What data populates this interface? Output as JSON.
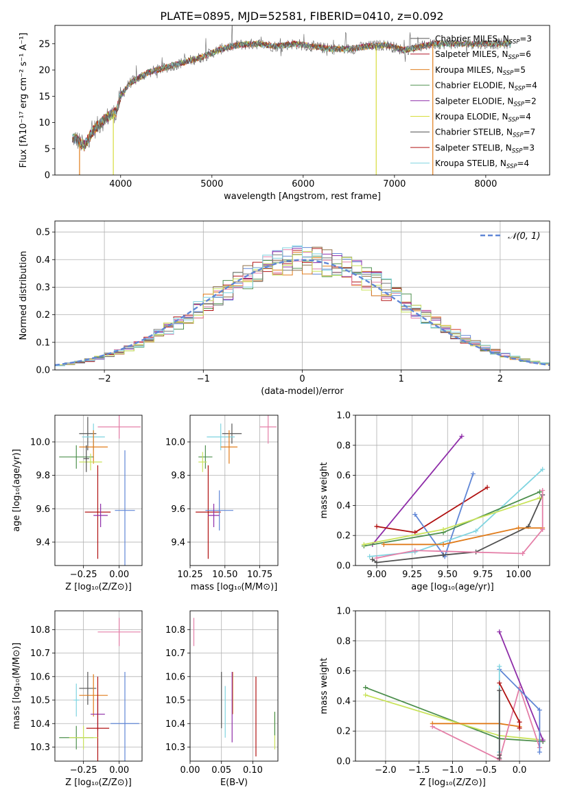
{
  "figure_title": "PLATE=0895, MJD=52581, FIBERID=0410, z=0.092",
  "colors": [
    "#555555",
    "#b2182b",
    "#e07b1a",
    "#4d8f4d",
    "#8e2ca8",
    "#d7dc3a",
    "#4f4f4f",
    "#b01010",
    "#7fd4e0",
    "#5f86d6",
    "#e47ea7",
    "#c9e35b"
  ],
  "chart_data": [
    {
      "id": "spectrum",
      "type": "line",
      "title": "PLATE=0895, MJD=52581, FIBERID=0410, z=0.092",
      "xlabel": "wavelength [Angstrom, rest frame]",
      "ylabel": "Flux [fλ10⁻¹⁷ erg cm⁻² s⁻¹ A⁻¹]",
      "xlim": [
        3280,
        8700
      ],
      "ylim": [
        0,
        28.5
      ],
      "xticks": [
        4000,
        5000,
        6000,
        7000,
        8000
      ],
      "yticks": [
        0,
        5,
        10,
        15,
        20,
        25
      ],
      "grid": false,
      "legend_position": "right",
      "continuum": {
        "x": [
          3500,
          3600,
          3700,
          3850,
          3950,
          4000,
          4100,
          4300,
          4500,
          4700,
          4900,
          5100,
          5300,
          5500,
          5700,
          5900,
          6100,
          6300,
          6500,
          6700,
          6900,
          7100,
          7300,
          7420
        ],
        "y": [
          7,
          5.5,
          8.5,
          11,
          12,
          15,
          17.5,
          19.5,
          20.5,
          21.5,
          22.5,
          24,
          24.8,
          25,
          24.5,
          25,
          24.5,
          24,
          24,
          24.5,
          24.8,
          23.8,
          24.5,
          25
        ]
      },
      "series": [
        {
          "name": "Chabrier MILES, N_SSP=3",
          "color": "#555555"
        },
        {
          "name": "Salpeter MILES, N_SSP=6",
          "color": "#b2182b"
        },
        {
          "name": "Kroupa MILES, N_SSP=5",
          "color": "#e07b1a"
        },
        {
          "name": "Chabrier ELODIE, N_SSP=4",
          "color": "#4d8f4d"
        },
        {
          "name": "Salpeter ELODIE, N_SSP=2",
          "color": "#8e2ca8"
        },
        {
          "name": "Kroupa ELODIE, N_SSP=4",
          "color": "#d7dc3a"
        },
        {
          "name": "Chabrier STELIB, N_SSP=7",
          "color": "#4f4f4f"
        },
        {
          "name": "Salpeter STELIB, N_SSP=3",
          "color": "#b01010"
        },
        {
          "name": "Kroupa STELIB, N_SSP=4",
          "color": "#7fd4e0"
        }
      ],
      "legend_labels": [
        {
          "main": "Chabrier MILES, N",
          "sub": "SSP",
          "tail": "=3"
        },
        {
          "main": "Salpeter MILES, N",
          "sub": "SSP",
          "tail": "=6"
        },
        {
          "main": "Kroupa MILES, N",
          "sub": "SSP",
          "tail": "=5"
        },
        {
          "main": "Chabrier ELODIE, N",
          "sub": "SSP",
          "tail": "=4"
        },
        {
          "main": "Salpeter ELODIE, N",
          "sub": "SSP",
          "tail": "=2"
        },
        {
          "main": "Kroupa ELODIE, N",
          "sub": "SSP",
          "tail": "=4"
        },
        {
          "main": "Chabrier STELIB, N",
          "sub": "SSP",
          "tail": "=7"
        },
        {
          "main": "Salpeter STELIB, N",
          "sub": "SSP",
          "tail": "=3"
        },
        {
          "main": "Kroupa STELIB, N",
          "sub": "SSP",
          "tail": "=4"
        }
      ],
      "drop_lines": [
        {
          "x": 3550,
          "color": "#e07b1a"
        },
        {
          "x": 3920,
          "color": "#d7dc3a"
        },
        {
          "x": 6800,
          "color": "#d7dc3a"
        },
        {
          "x": 7420,
          "color": "#e07b1a"
        }
      ]
    },
    {
      "id": "residuals",
      "type": "line",
      "xlabel": "(data-model)/error",
      "ylabel": "Normed distribution",
      "xlim": [
        -2.5,
        2.5
      ],
      "ylim": [
        0,
        0.54
      ],
      "xticks": [
        -2,
        -1,
        0,
        1,
        2
      ],
      "yticks": [
        0.0,
        0.1,
        0.2,
        0.3,
        0.4,
        0.5
      ],
      "grid": true,
      "legend_position": "top-right",
      "reference_label": "𝒩(0, 1)",
      "reference_color": "#5f86d6",
      "bin_width": 0.1,
      "histogram_colors": [
        "#5f86d6",
        "#e07b1a",
        "#4d8f4d",
        "#b01010",
        "#8e2ca8",
        "#8c6d46",
        "#e47ea7",
        "#777777",
        "#c9e35b",
        "#7fd4e0"
      ]
    },
    {
      "id": "age_vs_Z",
      "type": "scatter",
      "xlabel": "Z [log₁₀(Z/Z⊙)]",
      "ylabel": "age  [log₁₀(age/yr)]",
      "xlim": [
        -0.45,
        0.16
      ],
      "ylim": [
        9.26,
        10.16
      ],
      "xticks": [
        -0.25,
        0.0
      ],
      "yticks": [
        9.4,
        9.6,
        9.8,
        10.0
      ],
      "grid": true,
      "points": [
        {
          "x": -0.22,
          "y": 10.05,
          "xerr": 0.06,
          "yerr": 0.1,
          "color": "#555555"
        },
        {
          "x": 0.0,
          "y": 10.09,
          "xerr": 0.15,
          "yerr": 0.07,
          "color": "#e47ea7"
        },
        {
          "x": -0.18,
          "y": 10.03,
          "xerr": 0.08,
          "yerr": 0.08,
          "color": "#7fd4e0"
        },
        {
          "x": -0.18,
          "y": 9.97,
          "xerr": 0.1,
          "yerr": 0.1,
          "color": "#e07b1a"
        },
        {
          "x": -0.3,
          "y": 9.91,
          "xerr": 0.12,
          "yerr": 0.07,
          "color": "#4d8f4d"
        },
        {
          "x": -0.2,
          "y": 9.88,
          "xerr": 0.08,
          "yerr": 0.05,
          "color": "#c9e35b"
        },
        {
          "x": -0.15,
          "y": 9.58,
          "xerr": 0.09,
          "yerr": 0.28,
          "color": "#b01010"
        },
        {
          "x": 0.04,
          "y": 9.59,
          "xerr": 0.07,
          "yerr": 0.36,
          "color": "#5f86d6"
        },
        {
          "x": -0.13,
          "y": 9.56,
          "xerr": 0.05,
          "yerr": 0.07,
          "color": "#8e2ca8"
        },
        {
          "x": -0.23,
          "y": 9.9,
          "xerr": 0.02,
          "yerr": 0.08,
          "color": "#4f4f4f"
        }
      ]
    },
    {
      "id": "age_vs_mass",
      "type": "scatter",
      "xlabel": "mass [log₁₀(M/M⊙)]",
      "ylabel": "",
      "xlim": [
        10.25,
        10.88
      ],
      "ylim": [
        9.26,
        10.16
      ],
      "xticks": [
        10.25,
        10.5,
        10.75
      ],
      "yticks": [
        9.4,
        9.6,
        9.8,
        10.0
      ],
      "grid": true,
      "points": [
        {
          "x": 10.81,
          "y": 10.09,
          "xerr": 0.06,
          "yerr": 0.1,
          "color": "#e47ea7"
        },
        {
          "x": 10.55,
          "y": 10.05,
          "xerr": 0.07,
          "yerr": 0.06,
          "color": "#555555"
        },
        {
          "x": 10.47,
          "y": 10.03,
          "xerr": 0.1,
          "yerr": 0.08,
          "color": "#7fd4e0"
        },
        {
          "x": 10.53,
          "y": 9.97,
          "xerr": 0.06,
          "yerr": 0.1,
          "color": "#e07b1a"
        },
        {
          "x": 10.36,
          "y": 9.91,
          "xerr": 0.05,
          "yerr": 0.07,
          "color": "#4d8f4d"
        },
        {
          "x": 10.34,
          "y": 9.88,
          "xerr": 0.03,
          "yerr": 0.06,
          "color": "#c9e35b"
        },
        {
          "x": 10.38,
          "y": 9.58,
          "xerr": 0.09,
          "yerr": 0.28,
          "color": "#b01010"
        },
        {
          "x": 10.46,
          "y": 9.59,
          "xerr": 0.1,
          "yerr": 0.12,
          "color": "#5f86d6"
        },
        {
          "x": 10.42,
          "y": 9.56,
          "xerr": 0.04,
          "yerr": 0.07,
          "color": "#8e2ca8"
        }
      ]
    },
    {
      "id": "massweight_vs_age",
      "type": "line",
      "xlabel": "age  [log₁₀(age/yr)]",
      "ylabel": "mass weight",
      "xlim": [
        8.85,
        10.22
      ],
      "ylim": [
        0,
        1
      ],
      "xticks": [
        9.0,
        9.25,
        9.5,
        9.75,
        10.0
      ],
      "yticks": [
        0.0,
        0.2,
        0.4,
        0.6,
        0.8,
        1.0
      ],
      "grid": true,
      "series": [
        {
          "color": "#8e2ca8",
          "x": [
            8.97,
            9.6
          ],
          "y": [
            0.14,
            0.86
          ]
        },
        {
          "color": "#b01010",
          "x": [
            9.0,
            9.27,
            9.78
          ],
          "y": [
            0.26,
            0.22,
            0.52
          ]
        },
        {
          "color": "#5f86d6",
          "x": [
            9.27,
            9.48,
            9.68
          ],
          "y": [
            0.34,
            0.06,
            0.61
          ]
        },
        {
          "color": "#7fd4e0",
          "x": [
            8.95,
            9.27,
            9.7,
            10.17
          ],
          "y": [
            0.06,
            0.09,
            0.23,
            0.64
          ]
        },
        {
          "color": "#4f4f4f",
          "x": [
            8.97,
            9.0,
            9.47,
            9.7,
            10.07,
            10.17
          ],
          "y": [
            0.04,
            0.02,
            0.07,
            0.09,
            0.26,
            0.47
          ]
        },
        {
          "color": "#4d8f4d",
          "x": [
            8.91,
            9.47,
            10.15
          ],
          "y": [
            0.13,
            0.22,
            0.49
          ]
        },
        {
          "color": "#c9e35b",
          "x": [
            8.91,
            9.47,
            10.15
          ],
          "y": [
            0.14,
            0.24,
            0.45
          ]
        },
        {
          "color": "#e07b1a",
          "x": [
            9.05,
            9.47,
            10.0,
            10.17
          ],
          "y": [
            0.14,
            0.14,
            0.25,
            0.25
          ]
        },
        {
          "color": "#e47ea7",
          "x": [
            9.0,
            9.27,
            10.03,
            10.17,
            10.17
          ],
          "y": [
            0.05,
            0.1,
            0.08,
            0.24,
            0.5
          ]
        }
      ]
    },
    {
      "id": "mass_vs_Z",
      "type": "scatter",
      "xlabel": "Z [log₁₀(Z/Z⊙)]",
      "ylabel": "mass [log₁₀(M/M⊙)]",
      "xlim": [
        -0.45,
        0.16
      ],
      "ylim": [
        10.24,
        10.88
      ],
      "xticks": [
        -0.25,
        0.0
      ],
      "yticks": [
        10.3,
        10.4,
        10.5,
        10.6,
        10.7,
        10.8
      ],
      "grid": true,
      "points": [
        {
          "x": 0.0,
          "y": 10.79,
          "xerr": 0.15,
          "yerr": 0.06,
          "color": "#e47ea7"
        },
        {
          "x": -0.22,
          "y": 10.55,
          "xerr": 0.06,
          "yerr": 0.07,
          "color": "#555555"
        },
        {
          "x": -0.3,
          "y": 10.5,
          "xerr": 0.02,
          "yerr": 0.07,
          "color": "#7fd4e0"
        },
        {
          "x": -0.18,
          "y": 10.52,
          "xerr": 0.1,
          "yerr": 0.09,
          "color": "#e07b1a"
        },
        {
          "x": 0.04,
          "y": 10.4,
          "xerr": 0.1,
          "yerr": 0.22,
          "color": "#5f86d6"
        },
        {
          "x": -0.15,
          "y": 10.44,
          "xerr": 0.05,
          "yerr": 0.07,
          "color": "#8e2ca8"
        },
        {
          "x": -0.15,
          "y": 10.38,
          "xerr": 0.08,
          "yerr": 0.22,
          "color": "#b01010"
        },
        {
          "x": -0.3,
          "y": 10.34,
          "xerr": 0.12,
          "yerr": 0.05,
          "color": "#4d8f4d"
        },
        {
          "x": -0.25,
          "y": 10.34,
          "xerr": 0.1,
          "yerr": 0.05,
          "color": "#c9e35b"
        }
      ]
    },
    {
      "id": "mass_vs_ebv",
      "type": "scatter",
      "xlabel": "E(B-V)",
      "ylabel": "",
      "xlim": [
        0.0,
        0.14
      ],
      "ylim": [
        10.24,
        10.88
      ],
      "xticks": [
        0.0,
        0.05,
        0.1
      ],
      "yticks": [
        10.3,
        10.4,
        10.5,
        10.6,
        10.7,
        10.8
      ],
      "grid": true,
      "points": [
        {
          "x": 0.006,
          "y": 10.79,
          "xerr": 0,
          "yerr": 0.06,
          "color": "#e47ea7"
        },
        {
          "x": 0.05,
          "y": 10.5,
          "xerr": 0,
          "yerr": 0.12,
          "color": "#555555"
        },
        {
          "x": 0.056,
          "y": 10.45,
          "xerr": 0,
          "yerr": 0.11,
          "color": "#7fd4e0"
        },
        {
          "x": 0.068,
          "y": 10.53,
          "xerr": 0,
          "yerr": 0.09,
          "color": "#e07b1a"
        },
        {
          "x": 0.067,
          "y": 10.47,
          "xerr": 0,
          "yerr": 0.15,
          "color": "#8e2ca8"
        },
        {
          "x": 0.105,
          "y": 10.43,
          "xerr": 0,
          "yerr": 0.17,
          "color": "#b01010"
        },
        {
          "x": 0.135,
          "y": 10.37,
          "xerr": 0,
          "yerr": 0.08,
          "color": "#c9e35b"
        },
        {
          "x": 0.135,
          "y": 10.4,
          "xerr": 0,
          "yerr": 0.05,
          "color": "#4d8f4d"
        }
      ]
    },
    {
      "id": "massweight_vs_Z",
      "type": "line",
      "xlabel": "Z [log₁₀(Z/Z⊙)]",
      "ylabel": "mass weight",
      "xlim": [
        -2.45,
        0.45
      ],
      "ylim": [
        0,
        1
      ],
      "xticks": [
        -2.0,
        -1.5,
        -1.0,
        -0.5,
        0.0
      ],
      "yticks": [
        0.0,
        0.2,
        0.4,
        0.6,
        0.8,
        1.0
      ],
      "grid": true,
      "series": [
        {
          "color": "#4d8f4d",
          "x": [
            -2.3,
            -0.3,
            0.35
          ],
          "y": [
            0.49,
            0.15,
            0.13
          ]
        },
        {
          "color": "#c9e35b",
          "x": [
            -2.3,
            -0.3,
            0.35
          ],
          "y": [
            0.44,
            0.17,
            0.14
          ]
        },
        {
          "color": "#e07b1a",
          "x": [
            -1.3,
            -0.3,
            0.0
          ],
          "y": [
            0.25,
            0.25,
            0.23
          ]
        },
        {
          "color": "#e47ea7",
          "x": [
            -1.3,
            -0.3,
            0.0,
            0.3
          ],
          "y": [
            0.23,
            0.01,
            0.49,
            0.09
          ]
        },
        {
          "color": "#8e2ca8",
          "x": [
            -0.3,
            0.35
          ],
          "y": [
            0.86,
            0.14
          ]
        },
        {
          "color": "#5f86d6",
          "x": [
            -0.3,
            0.3,
            0.3
          ],
          "y": [
            0.61,
            0.34,
            0.06
          ]
        },
        {
          "color": "#7fd4e0",
          "x": [
            -0.3,
            -0.3
          ],
          "y": [
            0.63,
            0.06
          ]
        },
        {
          "color": "#b01010",
          "x": [
            -0.3,
            0.0,
            0.0
          ],
          "y": [
            0.52,
            0.26,
            0.22
          ]
        },
        {
          "color": "#4f4f4f",
          "x": [
            -0.3,
            -0.3,
            -0.3
          ],
          "y": [
            0.47,
            0.04,
            0.02
          ]
        }
      ]
    }
  ]
}
